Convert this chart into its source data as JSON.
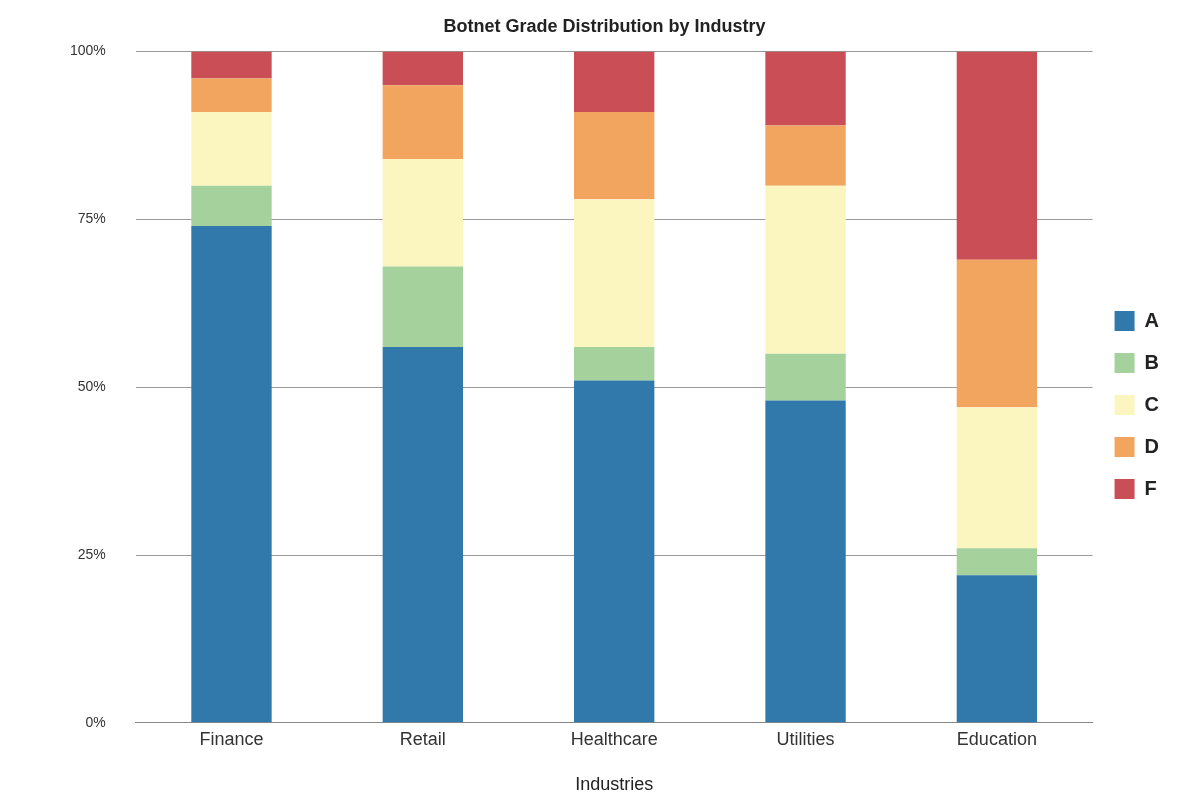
{
  "chart_data": {
    "type": "bar",
    "title": "Botnet Grade Distribution by Industry",
    "xlabel": "Industries",
    "categories": [
      "Finance",
      "Retail",
      "Healthcare",
      "Utilities",
      "Education"
    ],
    "stacked": true,
    "series": [
      {
        "name": "A",
        "color": "#3079aa",
        "values": [
          74,
          56,
          51,
          48,
          22
        ]
      },
      {
        "name": "B",
        "color": "#a5d19c",
        "values": [
          6,
          12,
          5,
          7,
          4
        ]
      },
      {
        "name": "C",
        "color": "#fbf5bf",
        "values": [
          11,
          16,
          22,
          25,
          21
        ]
      },
      {
        "name": "D",
        "color": "#f1a55f",
        "values": [
          5,
          11,
          13,
          9,
          22
        ]
      },
      {
        "name": "F",
        "color": "#c94e55",
        "values": [
          4,
          5,
          9,
          11,
          31
        ]
      }
    ],
    "ylim": [
      0,
      100
    ],
    "yticks": [
      {
        "value": 0,
        "label": "0%"
      },
      {
        "value": 25,
        "label": "25%"
      },
      {
        "value": 50,
        "label": "50%"
      },
      {
        "value": 75,
        "label": "75%"
      },
      {
        "value": 100,
        "label": "100%"
      }
    ],
    "grid": "y",
    "legend": "right"
  }
}
